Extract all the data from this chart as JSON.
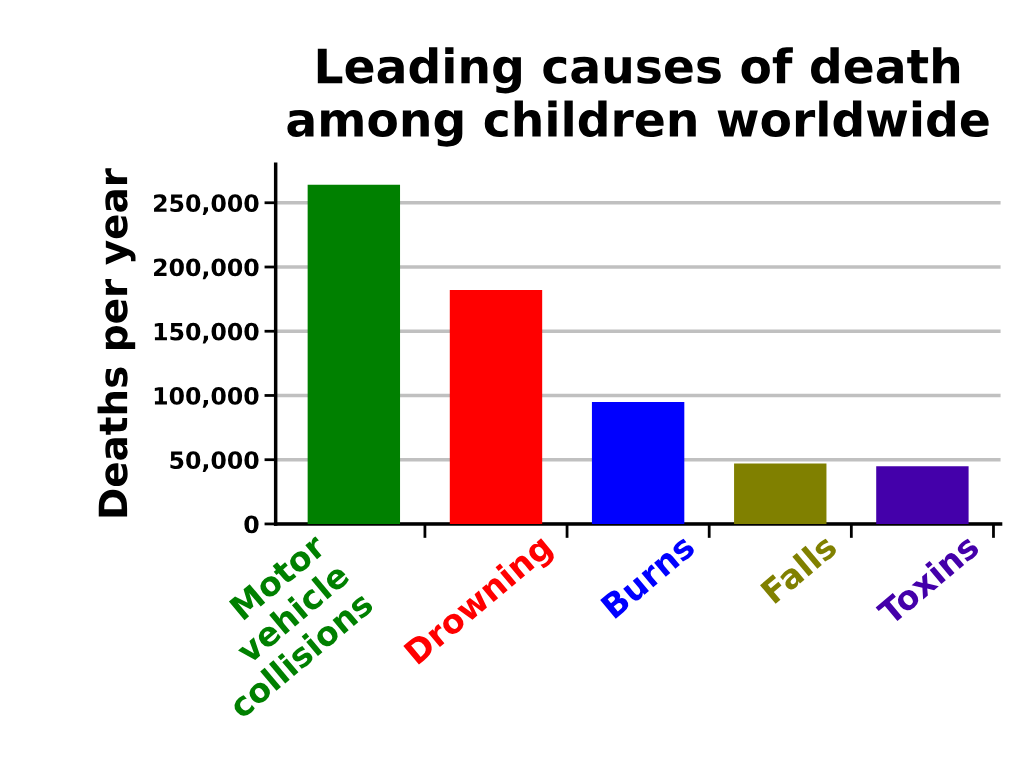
{
  "chart_data": {
    "type": "bar",
    "title": "Leading causes of death\namong children worldwide",
    "ylabel": "Deaths per year",
    "categories": [
      "Motor\nvehicle\ncollisions",
      "Drowning",
      "Burns",
      "Falls",
      "Toxins"
    ],
    "values": [
      264000,
      182000,
      95000,
      47000,
      45000
    ],
    "colors": [
      "#008000",
      "#ff0000",
      "#0000ff",
      "#808000",
      "#4400aa"
    ],
    "ylim": [
      0,
      280000
    ],
    "yticks": [
      0,
      {
        "value": 50000,
        "label": "50,000"
      },
      {
        "value": 100000,
        "label": "100,000"
      },
      {
        "value": 150000,
        "label": "150,000"
      },
      {
        "value": 200000,
        "label": "200,000"
      },
      {
        "value": 250000,
        "label": "250,000"
      }
    ],
    "grid": "y",
    "legend": false
  }
}
